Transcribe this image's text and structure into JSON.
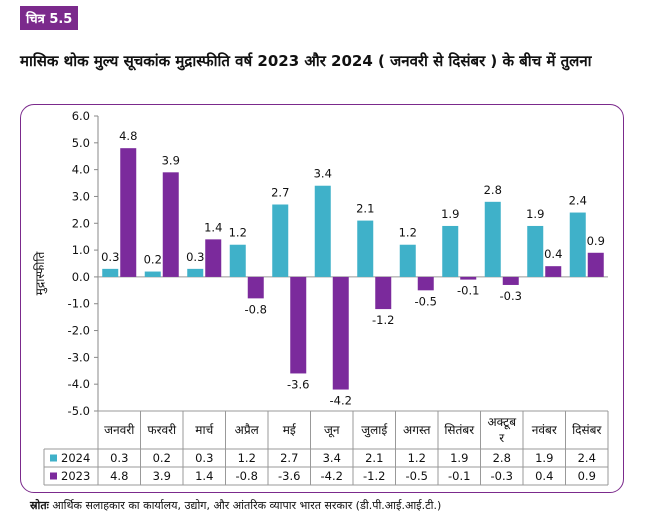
{
  "figure_label": "चित्र 5.5",
  "title": "मासिक थोक मुल्य सूचकांक मुद्रास्फीति वर्ष 2023 और 2024 ( जनवरी से दिसंबर ) के बीच में तुलना",
  "source_label": "स्रोतः",
  "source_text": "आर्थिक सलाहकार का कार्यालय, उद्योग, और आंतरिक व्यापार भारत सरकार (डी.पी.आई.आई.टी.)",
  "colors": {
    "series_2024": "#3fb1c9",
    "series_2023": "#7b2a9c",
    "frame": "#7b2a8c"
  },
  "chart_data": {
    "type": "bar",
    "title": "",
    "xlabel": "",
    "ylabel": "मुद्रास्फीति",
    "ylim": [
      -5.0,
      6.0
    ],
    "yticks": [
      "6.0",
      "5.0",
      "4.0",
      "3.0",
      "2.0",
      "1.0",
      "0.0",
      "-1.0",
      "-2.0",
      "-3.0",
      "-4.0",
      "-5.0"
    ],
    "grid": false,
    "legend": "data-table",
    "categories": [
      "जनवरी",
      "फरवरी",
      "मार्च",
      "अप्रैल",
      "मई",
      "जून",
      "जुलाई",
      "अगस्त",
      "सितंबर",
      "अक्टूबर",
      "नवंबर",
      "दिसंबर"
    ],
    "series": [
      {
        "name": "2024",
        "values": [
          0.3,
          0.2,
          0.3,
          1.2,
          2.7,
          3.4,
          2.1,
          1.2,
          1.9,
          2.8,
          1.9,
          2.4
        ]
      },
      {
        "name": "2023",
        "values": [
          4.8,
          3.9,
          1.4,
          -0.8,
          -3.6,
          -4.2,
          -1.2,
          -0.5,
          -0.1,
          -0.3,
          0.4,
          0.9
        ]
      }
    ]
  }
}
